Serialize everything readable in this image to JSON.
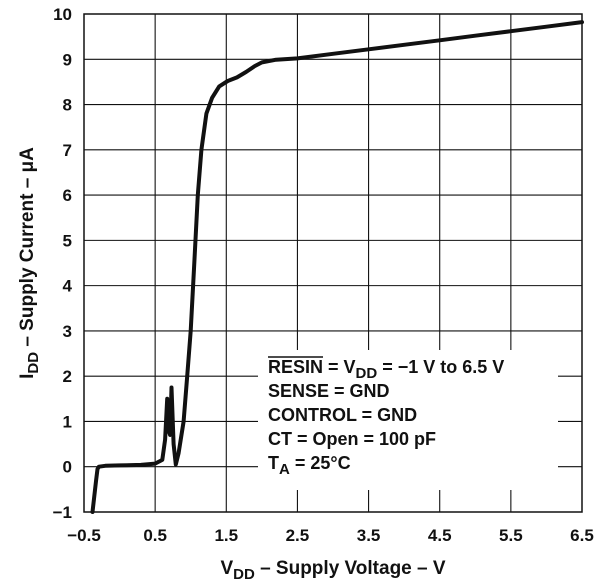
{
  "chart_data": {
    "type": "line",
    "title": "",
    "xlabel": {
      "main": "V",
      "sub": "DD",
      "rest": " – Supply Voltage – V"
    },
    "ylabel": {
      "main": "I",
      "sub": "DD",
      "rest": " – Supply Current – μA"
    },
    "xlim": [
      -0.5,
      6.5
    ],
    "ylim": [
      -1,
      10
    ],
    "x_ticks": [
      -0.5,
      0.5,
      1.5,
      2.5,
      3.5,
      4.5,
      5.5,
      6.5
    ],
    "x_tick_labels": [
      "−0.5",
      "0.5",
      "1.5",
      "2.5",
      "3.5",
      "4.5",
      "5.5",
      "6.5"
    ],
    "y_ticks": [
      -1,
      0,
      1,
      2,
      3,
      4,
      5,
      6,
      7,
      8,
      9,
      10
    ],
    "y_tick_labels": [
      "−1",
      "0",
      "1",
      "2",
      "3",
      "4",
      "5",
      "6",
      "7",
      "8",
      "9",
      "10"
    ],
    "grid": true,
    "legend": "none",
    "line_color": "#111111",
    "series": [
      {
        "points": [
          [
            -0.38,
            -1.0
          ],
          [
            -0.33,
            -0.3
          ],
          [
            -0.31,
            -0.05
          ],
          [
            -0.29,
            0.0
          ],
          [
            -0.2,
            0.02
          ],
          [
            0.0,
            0.03
          ],
          [
            0.3,
            0.04
          ],
          [
            0.5,
            0.07
          ],
          [
            0.6,
            0.15
          ],
          [
            0.64,
            0.6
          ],
          [
            0.67,
            1.5
          ],
          [
            0.69,
            0.8
          ],
          [
            0.71,
            0.7
          ],
          [
            0.73,
            1.75
          ],
          [
            0.76,
            0.5
          ],
          [
            0.79,
            0.05
          ],
          [
            0.83,
            0.3
          ],
          [
            0.9,
            1.0
          ],
          [
            0.95,
            2.0
          ],
          [
            1.0,
            3.0
          ],
          [
            1.05,
            4.5
          ],
          [
            1.1,
            6.0
          ],
          [
            1.15,
            7.0
          ],
          [
            1.22,
            7.8
          ],
          [
            1.3,
            8.15
          ],
          [
            1.4,
            8.4
          ],
          [
            1.52,
            8.52
          ],
          [
            1.65,
            8.6
          ],
          [
            1.78,
            8.72
          ],
          [
            1.9,
            8.85
          ],
          [
            2.0,
            8.93
          ],
          [
            2.2,
            8.99
          ],
          [
            2.5,
            9.02
          ],
          [
            3.0,
            9.12
          ],
          [
            3.5,
            9.22
          ],
          [
            4.0,
            9.32
          ],
          [
            4.5,
            9.42
          ],
          [
            5.0,
            9.52
          ],
          [
            5.5,
            9.62
          ],
          [
            6.0,
            9.72
          ],
          [
            6.5,
            9.82
          ]
        ]
      }
    ],
    "annotations": [
      {
        "type": "resin",
        "bar": "RESIN",
        "pre": " = V",
        "sub": "DD",
        "post": " = −1 V to 6.5 V"
      },
      {
        "type": "plain",
        "text": "SENSE = GND"
      },
      {
        "type": "plain",
        "text": "CONTROL = GND"
      },
      {
        "type": "plain",
        "text": "CT = Open = 100 pF"
      },
      {
        "type": "ta",
        "pre": "T",
        "sub": "A",
        "post": " = 25°C"
      }
    ]
  }
}
